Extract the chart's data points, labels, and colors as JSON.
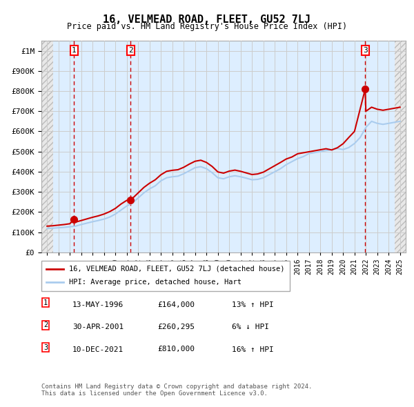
{
  "title": "16, VELMEAD ROAD, FLEET, GU52 7LJ",
  "subtitle": "Price paid vs. HM Land Registry's House Price Index (HPI)",
  "xlim": [
    1993.5,
    2025.5
  ],
  "ylim": [
    0,
    1050000
  ],
  "yticks": [
    0,
    100000,
    200000,
    300000,
    400000,
    500000,
    600000,
    700000,
    800000,
    900000,
    1000000
  ],
  "ytick_labels": [
    "£0",
    "£100K",
    "£200K",
    "£300K",
    "£400K",
    "£500K",
    "£600K",
    "£700K",
    "£800K",
    "£900K",
    "£1M"
  ],
  "sale_dates": [
    1996.37,
    2001.33,
    2021.94
  ],
  "sale_prices": [
    164000,
    260295,
    810000
  ],
  "sale_labels": [
    "1",
    "2",
    "3"
  ],
  "hpi_years": [
    1994,
    1994.5,
    1995,
    1995.5,
    1996,
    1996.5,
    1997,
    1997.5,
    1998,
    1998.5,
    1999,
    1999.5,
    2000,
    2000.5,
    2001,
    2001.5,
    2002,
    2002.5,
    2003,
    2003.5,
    2004,
    2004.5,
    2005,
    2005.5,
    2006,
    2006.5,
    2007,
    2007.5,
    2008,
    2008.5,
    2009,
    2009.5,
    2010,
    2010.5,
    2011,
    2011.5,
    2012,
    2012.5,
    2013,
    2013.5,
    2014,
    2014.5,
    2015,
    2015.5,
    2016,
    2016.5,
    2017,
    2017.5,
    2018,
    2018.5,
    2019,
    2019.5,
    2020,
    2020.5,
    2021,
    2021.5,
    2022,
    2022.5,
    2023,
    2023.5,
    2024,
    2024.5,
    2025
  ],
  "hpi_values": [
    118000,
    120000,
    122000,
    124000,
    127000,
    130000,
    138000,
    145000,
    152000,
    158000,
    165000,
    175000,
    190000,
    210000,
    230000,
    245000,
    270000,
    295000,
    315000,
    330000,
    355000,
    370000,
    375000,
    378000,
    390000,
    405000,
    420000,
    425000,
    415000,
    395000,
    370000,
    365000,
    375000,
    380000,
    375000,
    368000,
    360000,
    362000,
    370000,
    385000,
    400000,
    415000,
    435000,
    450000,
    465000,
    475000,
    490000,
    495000,
    500000,
    505000,
    510000,
    515000,
    510000,
    520000,
    540000,
    570000,
    620000,
    650000,
    640000,
    635000,
    640000,
    645000,
    650000
  ],
  "property_years": [
    1994,
    1994.5,
    1995,
    1995.5,
    1996,
    1996.37,
    1996.5,
    1997,
    1997.5,
    1998,
    1998.5,
    1999,
    1999.5,
    2000,
    2000.5,
    2001,
    2001.33,
    2001.5,
    2002,
    2002.5,
    2003,
    2003.5,
    2004,
    2004.5,
    2005,
    2005.5,
    2006,
    2006.5,
    2007,
    2007.5,
    2008,
    2008.5,
    2009,
    2009.5,
    2010,
    2010.5,
    2011,
    2011.5,
    2012,
    2012.5,
    2013,
    2013.5,
    2014,
    2014.5,
    2015,
    2015.5,
    2016,
    2016.5,
    2017,
    2017.5,
    2018,
    2018.5,
    2019,
    2019.5,
    2020,
    2020.5,
    2021,
    2021.94,
    2022,
    2022.5,
    2023,
    2023.5,
    2024,
    2024.5,
    2025
  ],
  "property_values": [
    130000,
    132000,
    135000,
    138000,
    142000,
    164000,
    150000,
    158000,
    166000,
    174000,
    181000,
    190000,
    202000,
    218000,
    240000,
    258000,
    260295,
    268000,
    295000,
    322000,
    343000,
    360000,
    385000,
    402000,
    407000,
    410000,
    422000,
    438000,
    452000,
    457000,
    446000,
    426000,
    399000,
    393000,
    403000,
    408000,
    402000,
    394000,
    386000,
    389000,
    398000,
    414000,
    430000,
    446000,
    463000,
    473000,
    489000,
    494000,
    499000,
    504000,
    509000,
    514000,
    508000,
    519000,
    539000,
    570000,
    600000,
    810000,
    700000,
    720000,
    710000,
    705000,
    710000,
    715000,
    720000
  ],
  "legend_line1": "16, VELMEAD ROAD, FLEET, GU52 7LJ (detached house)",
  "legend_line2": "HPI: Average price, detached house, Hart",
  "table_data": [
    [
      "1",
      "13-MAY-1996",
      "£164,000",
      "13%",
      "↑",
      "HPI"
    ],
    [
      "2",
      "30-APR-2001",
      "£260,295",
      "6%",
      "↓",
      "HPI"
    ],
    [
      "3",
      "10-DEC-2021",
      "£810,000",
      "16%",
      "↑",
      "HPI"
    ]
  ],
  "footer": "Contains HM Land Registry data © Crown copyright and database right 2024.\nThis data is licensed under the Open Government Licence v3.0.",
  "hpi_color": "#aaccee",
  "property_color": "#cc0000",
  "sale_marker_color": "#cc0000",
  "grid_color": "#cccccc",
  "hatch_color": "#cccccc",
  "bg_color": "#ddeeff",
  "plot_bg": "#ffffff"
}
